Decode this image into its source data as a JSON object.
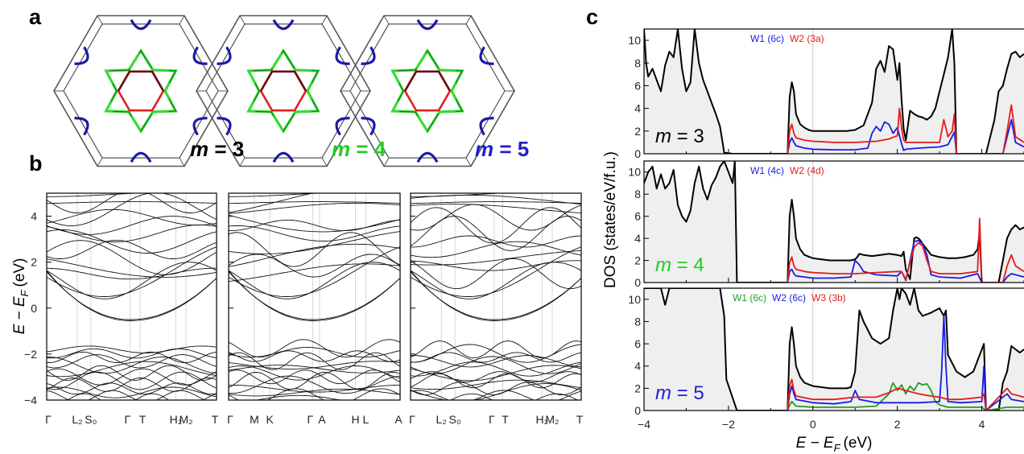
{
  "panels": {
    "a": "a",
    "b": "b",
    "c": "c"
  },
  "fermi_surfaces": {
    "labels": [
      {
        "prefix": "m",
        "eq": " = ",
        "value": "3",
        "color": "#000000"
      },
      {
        "prefix": "m",
        "eq": " = ",
        "value": "4",
        "color": "#22cc22"
      },
      {
        "prefix": "m",
        "eq": " = ",
        "value": "5",
        "color": "#1f1fcc"
      }
    ],
    "colors": {
      "frame": "#555555",
      "pocket": "#1a1aa8",
      "star_light": "#33dd33",
      "star_dark": "#1f7a1f",
      "hexagon_red": "#e02020",
      "hexagon_dark": "#6a1010"
    }
  },
  "bands": {
    "ylabel": "E − E",
    "ylabel_sub": "F",
    "ylabel_unit": "(eV)",
    "y_ticks": [
      "4",
      "2",
      "0",
      "−2",
      "−4"
    ],
    "panels": [
      {
        "name": "m3",
        "k_labels": [
          "Γ",
          "L₂",
          "S₀",
          "Γ",
          "T",
          "H₂",
          "M₂",
          "T"
        ]
      },
      {
        "name": "m4",
        "k_labels": [
          "Γ",
          "M",
          "K",
          "Γ",
          "A",
          "H",
          "L",
          "A"
        ]
      },
      {
        "name": "m5",
        "k_labels": [
          "Γ",
          "L₂",
          "S₀",
          "Γ",
          "T",
          "H₂",
          "M₂",
          "T"
        ]
      }
    ]
  },
  "chart_data": {
    "type": "line",
    "xlabel": "E − E",
    "xlabel_sub": "F",
    "xlabel_unit": "(eV)",
    "ylabel": "DOS (states/eV/f.u.)",
    "xlim": [
      -4,
      5
    ],
    "ylim": [
      0,
      11
    ],
    "x_ticks": [
      "−4",
      "−2",
      "0",
      "2",
      "4"
    ],
    "y_ticks": [
      "0",
      "2",
      "4",
      "6",
      "8",
      "10"
    ],
    "panels": [
      {
        "label": {
          "prefix": "m",
          "eq": " = ",
          "value": "3",
          "color": "#000000"
        },
        "legend": [
          {
            "text": "W1 (6c)",
            "color": "#1a1ae6"
          },
          {
            "text": "W2 (3a)",
            "color": "#e61a1a"
          }
        ],
        "series": [
          {
            "name": "total",
            "color": "#000000",
            "x": [
              -4,
              -3.95,
              -3.9,
              -3.8,
              -3.7,
              -3.6,
              -3.5,
              -3.4,
              -3.3,
              -3.2,
              -3.1,
              -3.0,
              -2.9,
              -2.8,
              -2.7,
              -2.6,
              -2.5,
              -2.4,
              -2.3,
              -2.2,
              -2.1,
              -1.9,
              -1.0,
              -0.6,
              -0.55,
              -0.5,
              -0.45,
              -0.4,
              -0.3,
              -0.2,
              -0.1,
              0,
              0.2,
              0.4,
              0.6,
              0.8,
              1.0,
              1.2,
              1.4,
              1.5,
              1.6,
              1.7,
              1.8,
              1.9,
              2.0,
              2.05,
              2.1,
              2.15,
              2.2,
              2.3,
              2.4,
              2.5,
              2.6,
              2.7,
              2.8,
              2.9,
              3.0,
              3.1,
              3.2,
              3.3,
              3.35,
              3.4,
              4.1,
              4.3,
              4.4,
              4.5,
              4.6,
              4.7,
              4.8,
              4.9,
              5.0
            ],
            "y": [
              11,
              8,
              6.8,
              7.5,
              6.5,
              5.5,
              7.8,
              9.0,
              8.5,
              11,
              7.5,
              5.5,
              6.3,
              11,
              8.0,
              6.5,
              5.5,
              4.5,
              3.5,
              2.4,
              0.1,
              0,
              0,
              0,
              5.0,
              6.3,
              5.5,
              3.5,
              2.6,
              2.3,
              2.1,
              2.0,
              2.0,
              2.0,
              2.0,
              2.0,
              2.1,
              2.5,
              4.5,
              7.5,
              8.2,
              7.2,
              9.5,
              9.2,
              6.5,
              8.0,
              4.8,
              2.2,
              1.2,
              3.8,
              3.5,
              3.3,
              3.2,
              3.0,
              3.3,
              4.0,
              5.5,
              7.0,
              8.5,
              11,
              8.0,
              0,
              0,
              3.0,
              5.5,
              6.0,
              7.5,
              8.8,
              9.0,
              8.5,
              8.8
            ]
          },
          {
            "name": "W1 (6c)",
            "color": "#1a1ae6",
            "x": [
              -0.6,
              -0.55,
              -0.5,
              -0.45,
              -0.4,
              -0.2,
              0,
              0.5,
              1.0,
              1.3,
              1.4,
              1.5,
              1.6,
              1.7,
              1.8,
              1.9,
              2.0,
              2.1,
              2.15,
              2.2,
              2.5,
              3.0,
              3.2,
              3.35,
              3.4,
              4.5,
              4.6,
              4.7,
              4.8,
              5.0
            ],
            "y": [
              0,
              1.0,
              1.4,
              1.0,
              0.7,
              0.5,
              0.4,
              0.35,
              0.35,
              0.5,
              1.8,
              2.4,
              2.0,
              2.8,
              2.6,
              1.8,
              2.3,
              0.9,
              0.3,
              0.4,
              0.5,
              0.6,
              0.8,
              1.9,
              0,
              0,
              1.5,
              3.0,
              1.0,
              0.6
            ]
          },
          {
            "name": "W2 (3a)",
            "color": "#e61a1a",
            "x": [
              -0.6,
              -0.55,
              -0.5,
              -0.45,
              -0.4,
              -0.2,
              0,
              0.5,
              1.0,
              1.5,
              1.8,
              2.0,
              2.05,
              2.1,
              2.15,
              2.2,
              2.5,
              3.0,
              3.1,
              3.2,
              3.3,
              3.35,
              3.4,
              4.5,
              4.6,
              4.7,
              4.8,
              5.0
            ],
            "y": [
              0,
              2.0,
              2.6,
              1.8,
              1.4,
              1.2,
              1.1,
              1.0,
              1.0,
              1.1,
              1.3,
              1.6,
              4.0,
              2.3,
              1.2,
              1.0,
              1.0,
              1.0,
              3.0,
              1.5,
              2.0,
              3.5,
              0,
              0,
              2.0,
              4.3,
              1.5,
              1.0
            ]
          }
        ]
      },
      {
        "label": {
          "prefix": "m",
          "eq": " = ",
          "value": "4",
          "color": "#22cc22"
        },
        "legend": [
          {
            "text": "W1 (4c)",
            "color": "#1a1ae6"
          },
          {
            "text": "W2 (4d)",
            "color": "#e61a1a"
          }
        ],
        "series": [
          {
            "name": "total",
            "color": "#000000",
            "x": [
              -4,
              -3.9,
              -3.8,
              -3.7,
              -3.6,
              -3.5,
              -3.4,
              -3.3,
              -3.2,
              -3.1,
              -3.0,
              -2.9,
              -2.8,
              -2.7,
              -2.6,
              -2.5,
              -2.4,
              -2.3,
              -2.2,
              -2.1,
              -2.0,
              -1.9,
              -1.85,
              -1.8,
              -1.0,
              -0.6,
              -0.55,
              -0.5,
              -0.45,
              -0.4,
              -0.3,
              -0.2,
              0,
              0.4,
              0.8,
              0.9,
              1.0,
              1.05,
              1.1,
              1.2,
              1.4,
              1.6,
              1.8,
              2.0,
              2.1,
              2.15,
              2.2,
              2.3,
              2.4,
              2.45,
              2.5,
              2.55,
              2.6,
              2.7,
              2.8,
              3.0,
              3.2,
              3.4,
              3.6,
              3.8,
              3.9,
              3.95,
              4.0,
              4.4,
              4.5,
              4.6,
              4.7,
              4.8,
              4.9,
              5.0
            ],
            "y": [
              9.0,
              10.0,
              10.5,
              8.5,
              9.8,
              8.5,
              9.0,
              10.2,
              7.0,
              6.0,
              5.5,
              6.5,
              9.0,
              10.5,
              8.5,
              7.5,
              8.8,
              9.5,
              10.5,
              11,
              10.0,
              9.0,
              11,
              0,
              0,
              0,
              6.0,
              7.5,
              6.0,
              4.0,
              3.0,
              2.5,
              2.2,
              2.0,
              2.0,
              2.0,
              2.1,
              2.3,
              2.6,
              2.5,
              2.4,
              2.5,
              2.6,
              2.5,
              2.4,
              2.8,
              1.2,
              0.3,
              4.0,
              4.1,
              4.0,
              3.8,
              3.5,
              3.0,
              2.5,
              2.3,
              2.2,
              2.2,
              2.3,
              2.5,
              3.0,
              4.5,
              0,
              0,
              2.0,
              4.0,
              4.8,
              5.2,
              4.8,
              5.0
            ]
          },
          {
            "name": "W1 (4c)",
            "color": "#1a1ae6",
            "x": [
              -0.6,
              -0.55,
              -0.5,
              -0.45,
              -0.4,
              -0.2,
              0,
              0.5,
              0.9,
              1.0,
              1.1,
              1.2,
              1.5,
              2.0,
              2.1,
              2.2,
              2.4,
              2.5,
              2.6,
              2.7,
              2.8,
              3.0,
              3.5,
              3.9,
              4.0,
              4.5,
              4.6,
              4.7,
              5.0
            ],
            "y": [
              0,
              1.0,
              1.2,
              0.8,
              0.6,
              0.5,
              0.4,
              0.4,
              0.5,
              2.0,
              1.6,
              1.0,
              0.7,
              0.6,
              1.0,
              0.2,
              3.7,
              3.8,
              3.5,
              2.5,
              0.7,
              0.5,
              0.4,
              0.8,
              0,
              0,
              0.5,
              0.8,
              0.5
            ]
          },
          {
            "name": "W2 (4d)",
            "color": "#e61a1a",
            "x": [
              -0.6,
              -0.55,
              -0.5,
              -0.45,
              -0.4,
              -0.2,
              0,
              0.5,
              1.0,
              1.5,
              2.0,
              2.1,
              2.2,
              2.4,
              2.5,
              2.6,
              2.7,
              2.8,
              3.0,
              3.5,
              3.9,
              3.95,
              4.0,
              4.5,
              4.6,
              4.7,
              4.8,
              5.0
            ],
            "y": [
              0,
              1.8,
              2.3,
              1.5,
              1.2,
              1.0,
              0.9,
              0.8,
              0.8,
              0.9,
              1.0,
              1.0,
              0.3,
              3.2,
              3.6,
              3.3,
              2.0,
              1.0,
              0.8,
              0.8,
              1.0,
              5.8,
              0,
              0,
              1.5,
              2.5,
              1.5,
              1.0
            ]
          }
        ]
      },
      {
        "label": {
          "prefix": "m",
          "eq": " = ",
          "value": "5",
          "color": "#1f1fcc"
        },
        "legend": [
          {
            "text": "W1 (6c)",
            "color": "#1f9e1f"
          },
          {
            "text": "W2 (6c)",
            "color": "#1a1ae6"
          },
          {
            "text": "W3 (3b)",
            "color": "#e61a1a"
          }
        ],
        "series": [
          {
            "name": "total",
            "color": "#000000",
            "x": [
              -4,
              -3.8,
              -3.6,
              -3.5,
              -3.4,
              -3.2,
              -3.0,
              -2.8,
              -2.6,
              -2.4,
              -2.2,
              -2.1,
              -2.05,
              -1.8,
              -1.0,
              -0.6,
              -0.55,
              -0.5,
              -0.45,
              -0.4,
              -0.3,
              -0.2,
              0,
              0.4,
              0.8,
              0.9,
              1.0,
              1.1,
              1.2,
              1.4,
              1.6,
              1.8,
              1.9,
              2.0,
              2.05,
              2.1,
              2.2,
              2.3,
              2.4,
              2.5,
              2.6,
              2.8,
              3.0,
              3.1,
              3.15,
              3.2,
              3.4,
              3.6,
              3.8,
              3.9,
              4.0,
              4.05,
              4.1,
              4.4,
              4.5,
              4.6,
              4.7,
              4.8,
              4.9,
              5.0
            ],
            "y": [
              11,
              11,
              11,
              9.5,
              11,
              11,
              11,
              11,
              11,
              11,
              11,
              8.5,
              2.8,
              0,
              0,
              0,
              6.0,
              7.5,
              6.0,
              4.0,
              3.0,
              2.5,
              2.2,
              2.0,
              2.0,
              2.1,
              3.5,
              9.0,
              8.0,
              6.5,
              6.0,
              6.5,
              9.0,
              11,
              10.0,
              11,
              10.5,
              9.5,
              11,
              9.0,
              8.5,
              8.8,
              9.2,
              8.5,
              9.0,
              5.0,
              3.5,
              3.0,
              3.5,
              4.5,
              5.5,
              6.0,
              0,
              0,
              2.5,
              3.5,
              5.8,
              5.5,
              5.2,
              5.5
            ]
          },
          {
            "name": "W1 (6c)",
            "color": "#1f9e1f",
            "x": [
              -0.6,
              -0.55,
              -0.5,
              -0.4,
              0,
              0.5,
              1.0,
              1.5,
              1.8,
              1.9,
              2.0,
              2.1,
              2.2,
              2.3,
              2.4,
              2.5,
              2.6,
              2.7,
              2.8,
              2.9,
              3.0,
              3.2,
              4.0,
              4.1,
              4.6,
              5.0
            ],
            "y": [
              0,
              0.5,
              0.8,
              0.4,
              0.3,
              0.3,
              0.3,
              0.4,
              1.5,
              2.5,
              1.8,
              2.3,
              1.5,
              2.2,
              1.8,
              2.5,
              2.3,
              2.4,
              1.8,
              0.8,
              0.5,
              0.3,
              0.3,
              0,
              0.3,
              0.3
            ]
          },
          {
            "name": "W2 (6c)",
            "color": "#1a1ae6",
            "x": [
              -0.6,
              -0.55,
              -0.5,
              -0.45,
              -0.4,
              0,
              0.5,
              0.9,
              1.0,
              1.1,
              1.5,
              2.0,
              2.5,
              3.0,
              3.05,
              3.1,
              3.15,
              3.2,
              3.5,
              4.0,
              4.05,
              4.1,
              4.6,
              4.7,
              5.0
            ],
            "y": [
              0,
              1.5,
              2.2,
              1.5,
              1.0,
              0.7,
              0.6,
              0.8,
              1.8,
              1.0,
              0.7,
              0.7,
              0.7,
              0.8,
              3.5,
              8.5,
              4.0,
              0.8,
              0.7,
              0.8,
              4.0,
              0,
              1.5,
              1.0,
              0.8
            ]
          },
          {
            "name": "W3 (3b)",
            "color": "#e61a1a",
            "x": [
              -0.6,
              -0.55,
              -0.5,
              -0.45,
              -0.4,
              0,
              0.5,
              1.0,
              1.5,
              1.8,
              2.0,
              2.2,
              2.5,
              2.8,
              3.0,
              3.2,
              3.5,
              4.0,
              4.05,
              4.1,
              4.6,
              4.7,
              5.0
            ],
            "y": [
              0,
              2.2,
              2.8,
              1.8,
              1.3,
              1.0,
              1.0,
              1.2,
              1.2,
              1.6,
              2.0,
              1.8,
              1.5,
              1.3,
              1.2,
              1.0,
              1.0,
              1.2,
              1.5,
              0,
              2.0,
              1.5,
              1.2
            ]
          }
        ]
      }
    ]
  }
}
